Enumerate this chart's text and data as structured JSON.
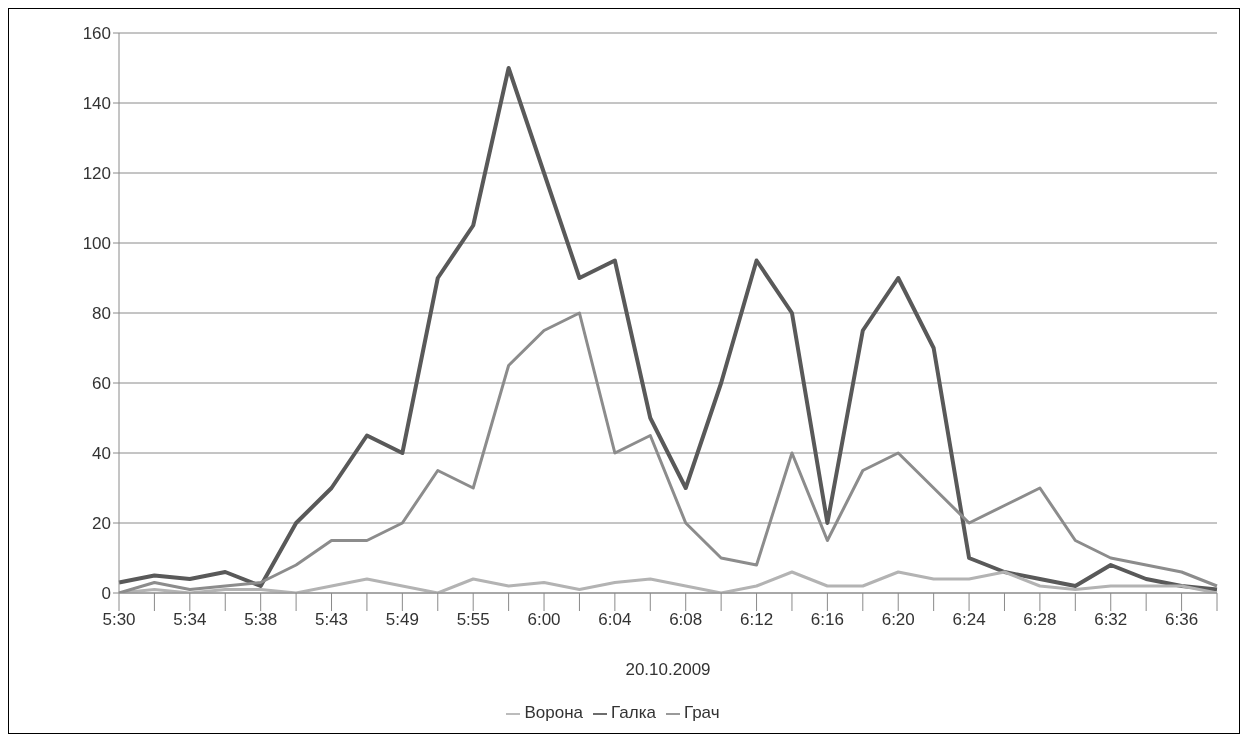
{
  "chart_data": {
    "type": "line",
    "xlabel": "20.10.2009",
    "categories": [
      "5:30",
      null,
      "5:34",
      null,
      "5:38",
      null,
      "5:43",
      null,
      "5:49",
      null,
      "5:55",
      null,
      "6:00",
      null,
      "6:04",
      null,
      "6:08",
      null,
      "6:12",
      null,
      "6:16",
      null,
      "6:20",
      null,
      "6:24",
      null,
      "6:28",
      null,
      "6:32",
      null,
      "6:36",
      null
    ],
    "series": [
      {
        "name": "Галка",
        "color": "#595959",
        "values": [
          3,
          5,
          4,
          6,
          2,
          20,
          30,
          45,
          40,
          90,
          105,
          150,
          120,
          90,
          95,
          50,
          30,
          60,
          95,
          80,
          20,
          75,
          90,
          70,
          10,
          6,
          4,
          2,
          8,
          4,
          2,
          1
        ]
      },
      {
        "name": "Ворона",
        "color": "#b3b3b3",
        "values": [
          0,
          1,
          0,
          1,
          1,
          0,
          2,
          4,
          2,
          0,
          4,
          2,
          3,
          1,
          3,
          4,
          2,
          0,
          2,
          6,
          2,
          2,
          6,
          4,
          4,
          6,
          2,
          1,
          2,
          2,
          2,
          0
        ]
      },
      {
        "name": "Грач",
        "color": "#8c8c8c",
        "values": [
          0,
          3,
          1,
          2,
          3,
          8,
          15,
          15,
          20,
          35,
          30,
          65,
          75,
          80,
          40,
          45,
          20,
          10,
          8,
          40,
          15,
          35,
          40,
          30,
          20,
          25,
          30,
          15,
          10,
          8,
          6,
          2
        ]
      }
    ],
    "ylim": [
      0,
      160
    ],
    "yticks": [
      0,
      20,
      40,
      60,
      80,
      100,
      120,
      140,
      160
    ],
    "grid": "y",
    "legend": "bottom",
    "marker": "none",
    "line_style": "solid"
  }
}
